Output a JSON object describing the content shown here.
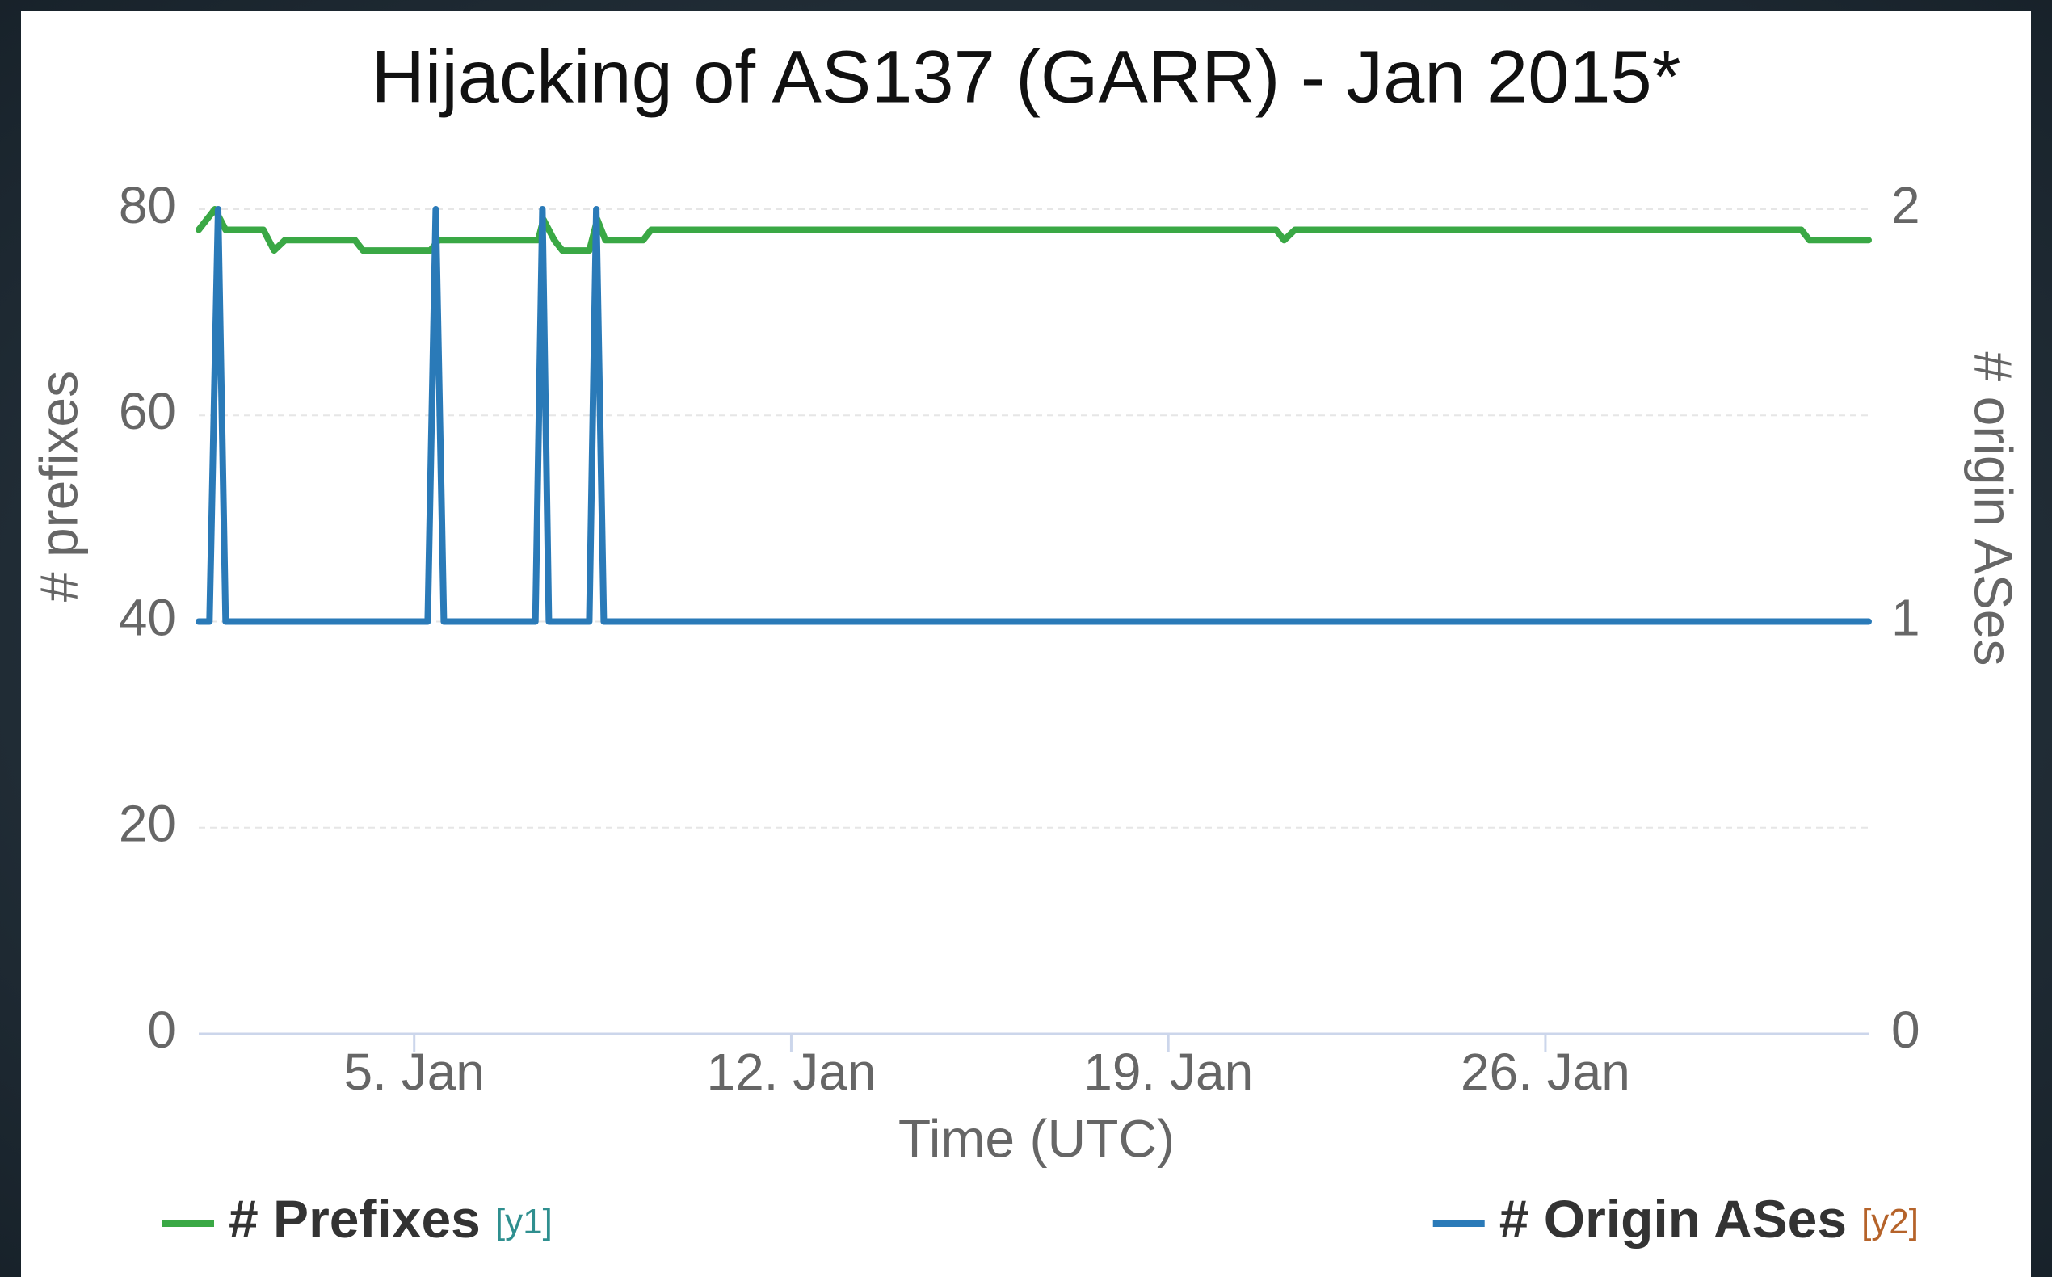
{
  "chart_data": {
    "type": "line",
    "title": "Hijacking of AS137 (GARR) - Jan 2015*",
    "x_label": "Time (UTC)",
    "y_label": "# prefixes",
    "y2_label": "# origin ASes",
    "xlim": [
      1,
      32
    ],
    "xticks": [
      {
        "value": 5,
        "label": "5. Jan"
      },
      {
        "value": 12,
        "label": "12. Jan"
      },
      {
        "value": 19,
        "label": "19. Jan"
      },
      {
        "value": 26,
        "label": "26. Jan"
      }
    ],
    "ylim": [
      0,
      80
    ],
    "yticks": [
      0,
      20,
      40,
      60,
      80
    ],
    "y2lim": [
      0,
      2
    ],
    "y2ticks": [
      0,
      1,
      2
    ],
    "grid": true,
    "series": [
      {
        "name": "# Prefixes",
        "legend_tag": "[y1]",
        "tag_color": "#2f8f8f",
        "color": "#3aa845",
        "axis": "y",
        "x": [
          1.0,
          1.3,
          1.5,
          2.2,
          2.4,
          2.6,
          3.9,
          4.05,
          5.3,
          5.45,
          7.3,
          7.4,
          7.6,
          7.75,
          8.25,
          8.4,
          8.55,
          9.25,
          9.4,
          21.0,
          21.15,
          21.35,
          30.75,
          30.9,
          32.0
        ],
        "values": [
          78,
          80,
          78,
          78,
          76,
          77,
          77,
          76,
          76,
          77,
          77,
          79,
          77,
          76,
          76,
          79,
          77,
          77,
          78,
          78,
          77,
          78,
          78,
          77,
          77
        ]
      },
      {
        "name": "# Origin ASes",
        "legend_tag": "[y2]",
        "tag_color": "#b5632a",
        "color": "#2a7ab8",
        "axis": "y2",
        "x": [
          1.0,
          1.2,
          1.36,
          1.5,
          5.25,
          5.4,
          5.55,
          7.25,
          7.38,
          7.5,
          8.25,
          8.38,
          8.52,
          32.0
        ],
        "values": [
          1,
          1,
          2,
          1,
          1,
          2,
          1,
          1,
          2,
          1,
          1,
          2,
          1,
          1
        ]
      }
    ]
  }
}
